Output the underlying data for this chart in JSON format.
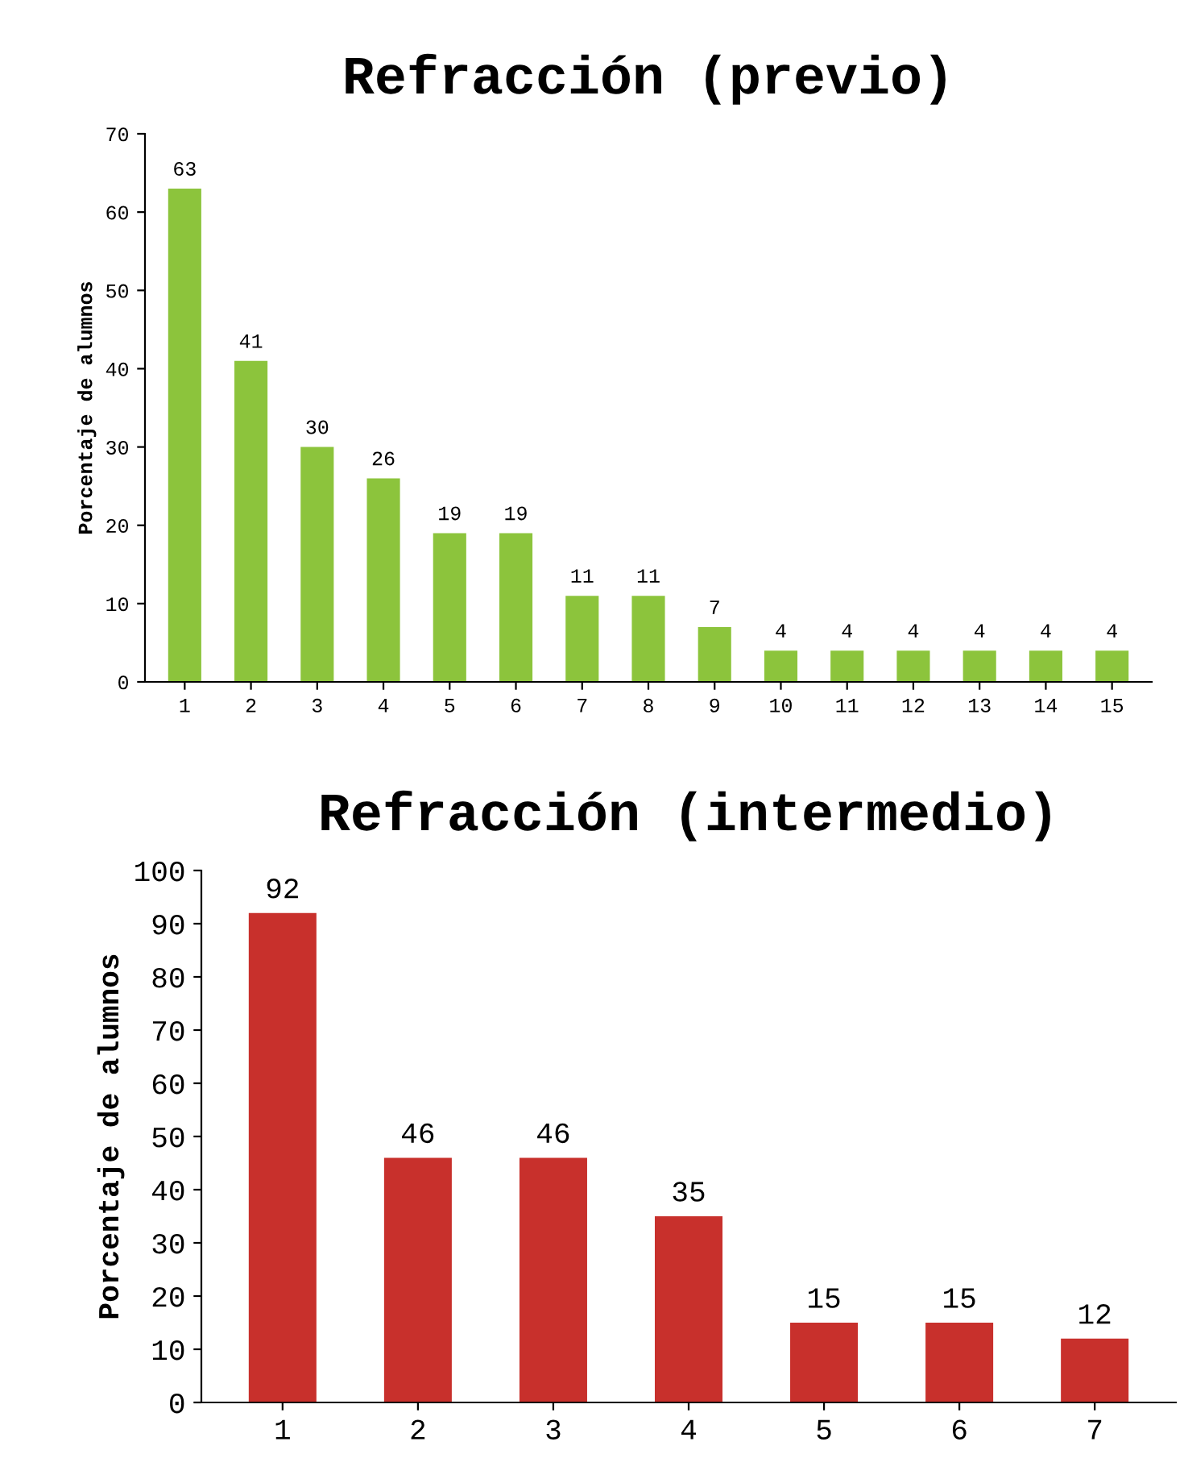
{
  "chart_data": [
    {
      "type": "bar",
      "title": "Refracción (previo)",
      "ylabel": "Porcentaje de alumnos",
      "categories": [
        "1",
        "2",
        "3",
        "4",
        "5",
        "6",
        "7",
        "8",
        "9",
        "10",
        "11",
        "12",
        "13",
        "14",
        "15"
      ],
      "values": [
        63,
        41,
        30,
        26,
        19,
        19,
        11,
        11,
        7,
        4,
        4,
        4,
        4,
        4,
        4
      ],
      "color": "#8cc43c",
      "ylim": [
        0,
        70
      ],
      "yticks": [
        0,
        10,
        20,
        30,
        40,
        50,
        60,
        70
      ],
      "data_labels": true,
      "grid": false,
      "legend": false
    },
    {
      "type": "bar",
      "title": "Refracción (intermedio)",
      "ylabel": "Porcentaje de alumnos",
      "categories": [
        "1",
        "2",
        "3",
        "4",
        "5",
        "6",
        "7"
      ],
      "values": [
        92,
        46,
        46,
        35,
        15,
        15,
        12
      ],
      "color": "#c8302c",
      "ylim": [
        0,
        100
      ],
      "yticks": [
        0,
        10,
        20,
        30,
        40,
        50,
        60,
        70,
        80,
        90,
        100
      ],
      "data_labels": true,
      "grid": false,
      "legend": false
    }
  ]
}
